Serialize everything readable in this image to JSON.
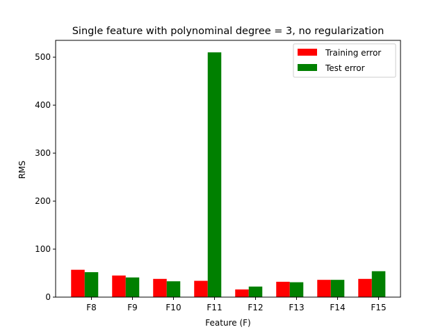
{
  "chart_data": {
    "type": "bar",
    "title": "Single feature with polynominal degree = 3, no regularization",
    "xlabel": "Feature (F)",
    "ylabel": "RMS",
    "categories": [
      "F8",
      "F9",
      "F10",
      "F11",
      "F12",
      "F13",
      "F14",
      "F15"
    ],
    "series": [
      {
        "name": "Training error",
        "color": "#ff0000",
        "values": [
          57,
          45,
          38,
          34,
          16,
          32,
          36,
          38
        ]
      },
      {
        "name": "Test error",
        "color": "#008000",
        "values": [
          52,
          41,
          33,
          510,
          22,
          31,
          36,
          54
        ]
      }
    ],
    "ylim": [
      0,
      535
    ],
    "yticks": [
      0,
      100,
      200,
      300,
      400,
      500
    ],
    "grid": false,
    "legend_position": "top-right"
  }
}
